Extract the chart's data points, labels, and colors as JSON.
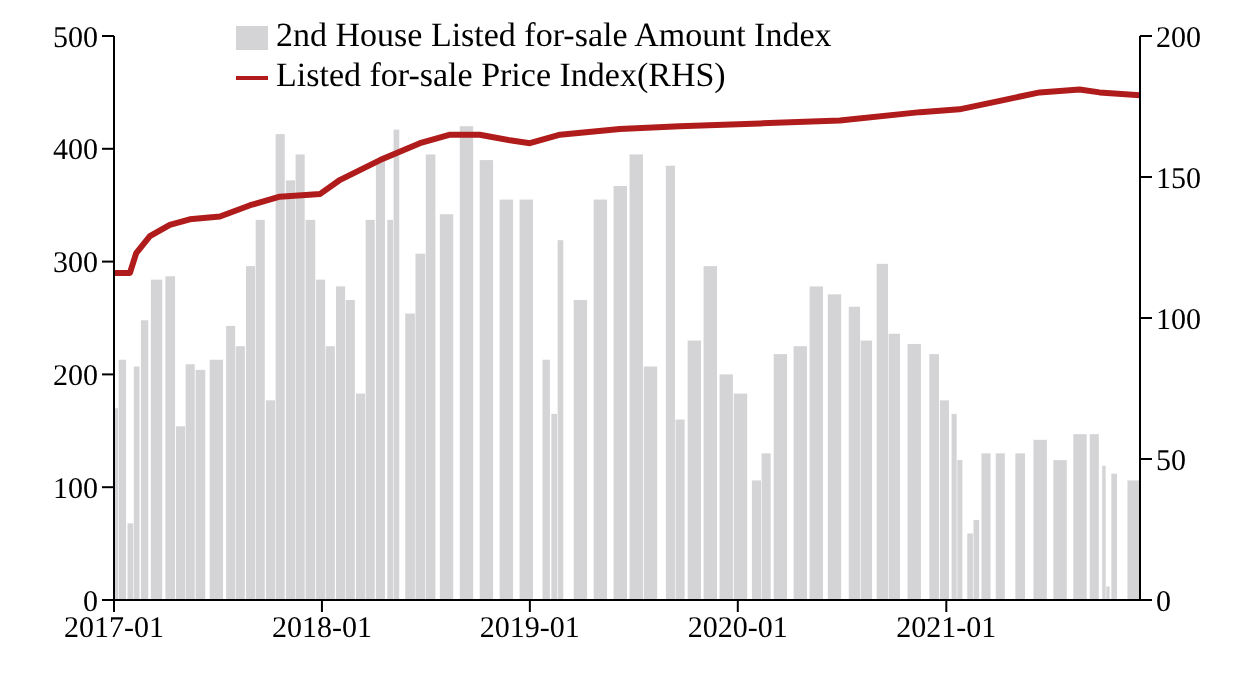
{
  "chart_data": {
    "type": "bar",
    "legend": "top",
    "grid": false,
    "xlim": [
      "2017-01-01",
      "2021-12-07"
    ],
    "xticks": [
      "2017-01",
      "2018-01",
      "2019-01",
      "2020-01",
      "2021-01"
    ],
    "ylim": [
      0,
      500
    ],
    "yticks": [
      0,
      100,
      200,
      300,
      400,
      500
    ],
    "y2lim": [
      0,
      200
    ],
    "y2ticks": [
      0,
      50,
      100,
      150,
      200
    ],
    "series": [
      {
        "name": "2nd House Listed for-sale Amount Index",
        "color": "#d4d4d6",
        "x": [
          "2017-01-01",
          "2017-01-15",
          "2017-01-29",
          "2017-02-09",
          "2017-02-23",
          "2017-03-16",
          "2017-04-09",
          "2017-04-27",
          "2017-05-14",
          "2017-06-01",
          "2017-06-29",
          "2017-07-24",
          "2017-08-10",
          "2017-08-28",
          "2017-09-14",
          "2017-10-02",
          "2017-10-19",
          "2017-11-06",
          "2017-11-23",
          "2017-12-11",
          "2017-12-29",
          "2018-01-15",
          "2018-02-02",
          "2018-02-19",
          "2018-03-09",
          "2018-03-26",
          "2018-04-13",
          "2018-04-30",
          "2018-05-11",
          "2018-06-04",
          "2018-06-22",
          "2018-07-10",
          "2018-08-07",
          "2018-09-11",
          "2018-10-16",
          "2018-11-20",
          "2018-12-25",
          "2019-01-29",
          "2019-02-12",
          "2019-02-23",
          "2019-03-30",
          "2019-05-04",
          "2019-06-08",
          "2019-07-06",
          "2019-07-31",
          "2019-09-04",
          "2019-09-21",
          "2019-10-16",
          "2019-11-13",
          "2019-12-11",
          "2020-01-05",
          "2020-02-02",
          "2020-02-19",
          "2020-03-15",
          "2020-04-19",
          "2020-05-17",
          "2020-06-18",
          "2020-07-23",
          "2020-08-13",
          "2020-09-10",
          "2020-10-01",
          "2020-11-05",
          "2020-12-10",
          "2020-12-28",
          "2021-01-14",
          "2021-01-24",
          "2021-02-11",
          "2021-02-22",
          "2021-03-11",
          "2021-04-05",
          "2021-04-22",
          "2021-05-10",
          "2021-06-14",
          "2021-07-19",
          "2021-08-23",
          "2021-09-17",
          "2021-10-04",
          "2021-10-11",
          "2021-10-22",
          "2021-11-26"
        ],
        "values": [
          170,
          213,
          68,
          207,
          248,
          284,
          287,
          154,
          209,
          204,
          213,
          243,
          225,
          296,
          337,
          177,
          413,
          372,
          395,
          337,
          284,
          225,
          278,
          266,
          183,
          337,
          390,
          337,
          417,
          254,
          307,
          395,
          342,
          420,
          390,
          355,
          355,
          213,
          165,
          319,
          266,
          355,
          367,
          395,
          207,
          385,
          160,
          230,
          296,
          200,
          183,
          106,
          130,
          218,
          225,
          278,
          271,
          260,
          230,
          298,
          236,
          227,
          218,
          177,
          165,
          124,
          59,
          71,
          130,
          130,
          0,
          130,
          142,
          124,
          147,
          147,
          119,
          12,
          112,
          106
        ]
      },
      {
        "name": "Listed for-sale Price Index(RHS)",
        "type": "line",
        "axis": "y2",
        "color": "#b01c1c",
        "x": [
          "2017-01-01",
          "2017-01-29",
          "2017-02-09",
          "2017-03-05",
          "2017-04-09",
          "2017-05-14",
          "2017-07-06",
          "2017-08-28",
          "2017-10-19",
          "2017-12-29",
          "2018-02-02",
          "2018-04-13",
          "2018-06-22",
          "2018-08-14",
          "2018-10-05",
          "2018-11-27",
          "2019-01-01",
          "2019-02-23",
          "2019-06-08",
          "2019-09-21",
          "2020-02-09",
          "2020-06-28",
          "2020-11-16",
          "2021-01-24",
          "2021-04-05",
          "2021-06-14",
          "2021-08-23",
          "2021-09-27",
          "2021-12-07"
        ],
        "values": [
          116,
          116,
          123,
          129,
          133,
          135,
          136,
          140,
          143,
          144,
          149,
          156,
          162,
          165,
          165,
          163,
          162,
          165,
          167,
          168,
          169,
          170,
          173,
          174,
          177,
          180,
          181,
          180,
          179
        ]
      }
    ]
  }
}
